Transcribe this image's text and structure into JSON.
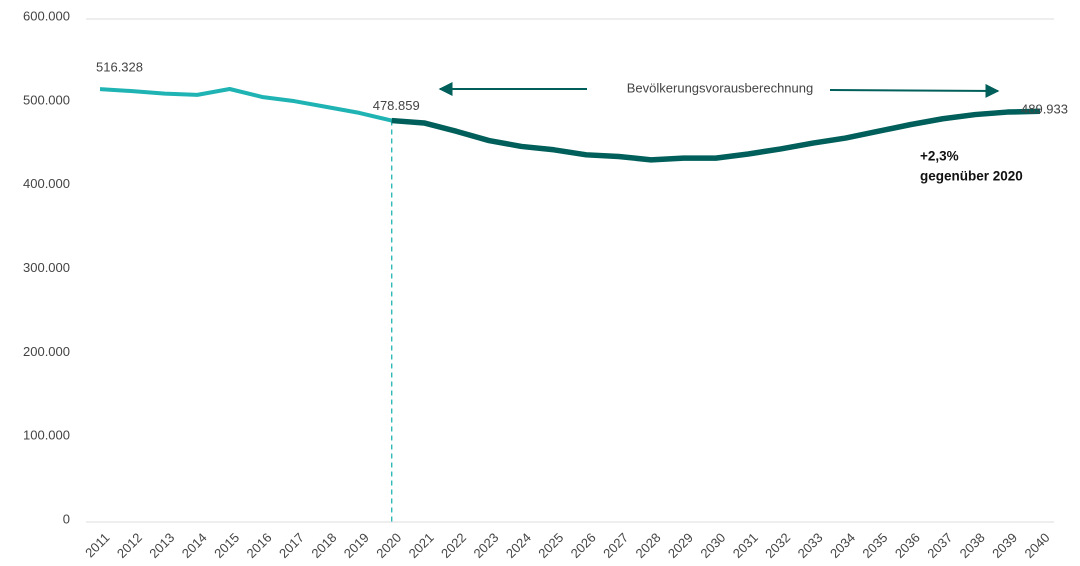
{
  "chart_data": {
    "type": "line",
    "categories": [
      "2011",
      "2012",
      "2013",
      "2014",
      "2015",
      "2016",
      "2017",
      "2018",
      "2019",
      "2020",
      "2021",
      "2022",
      "2023",
      "2024",
      "2025",
      "2026",
      "2027",
      "2028",
      "2029",
      "2030",
      "2031",
      "2032",
      "2033",
      "2034",
      "2035",
      "2036",
      "2037",
      "2038",
      "2039",
      "2040"
    ],
    "series": [
      {
        "color": "#1fb3b3",
        "values": [
          516328,
          514000,
          511000,
          509500,
          516500,
          507000,
          502000,
          495000,
          488000,
          478859,
          null,
          null,
          null,
          null,
          null,
          null,
          null,
          null,
          null,
          null,
          null,
          null,
          null,
          null,
          null,
          null,
          null,
          null,
          null,
          null
        ],
        "value_labels": [
          "516.328",
          null,
          null,
          null,
          null,
          null,
          null,
          null,
          null,
          "478.859",
          null,
          null,
          null,
          null,
          null,
          null,
          null,
          null,
          null,
          null,
          null,
          null,
          null,
          null,
          null,
          null,
          null,
          null,
          null,
          null
        ]
      },
      {
        "color": "#005f5a",
        "values": [
          null,
          null,
          null,
          null,
          null,
          null,
          null,
          null,
          null,
          478859,
          476000,
          466000,
          455000,
          448000,
          444000,
          438000,
          436000,
          432000,
          434000,
          434000,
          439000,
          445000,
          452000,
          458000,
          466000,
          474000,
          481000,
          486000,
          489000,
          489933
        ],
        "value_labels": [
          null,
          null,
          null,
          null,
          null,
          null,
          null,
          null,
          null,
          null,
          null,
          null,
          null,
          null,
          null,
          null,
          null,
          null,
          null,
          null,
          null,
          null,
          null,
          null,
          null,
          null,
          null,
          null,
          null,
          "489.933"
        ]
      }
    ],
    "ylim": [
      0,
      600000
    ],
    "yticks": [
      0,
      {
        "value": 100000,
        "label": "100.000"
      },
      {
        "value": 200000,
        "label": "200.000"
      },
      {
        "value": 300000,
        "label": "300.000"
      },
      {
        "value": 400000,
        "label": "400.000"
      },
      {
        "value": 500000,
        "label": "500.000"
      },
      {
        "value": 600000,
        "label": "600.000"
      }
    ],
    "annotations": [
      "Bevölkerungsvorausberechnung",
      "+2,3%",
      "gegenüber 2020"
    ]
  }
}
